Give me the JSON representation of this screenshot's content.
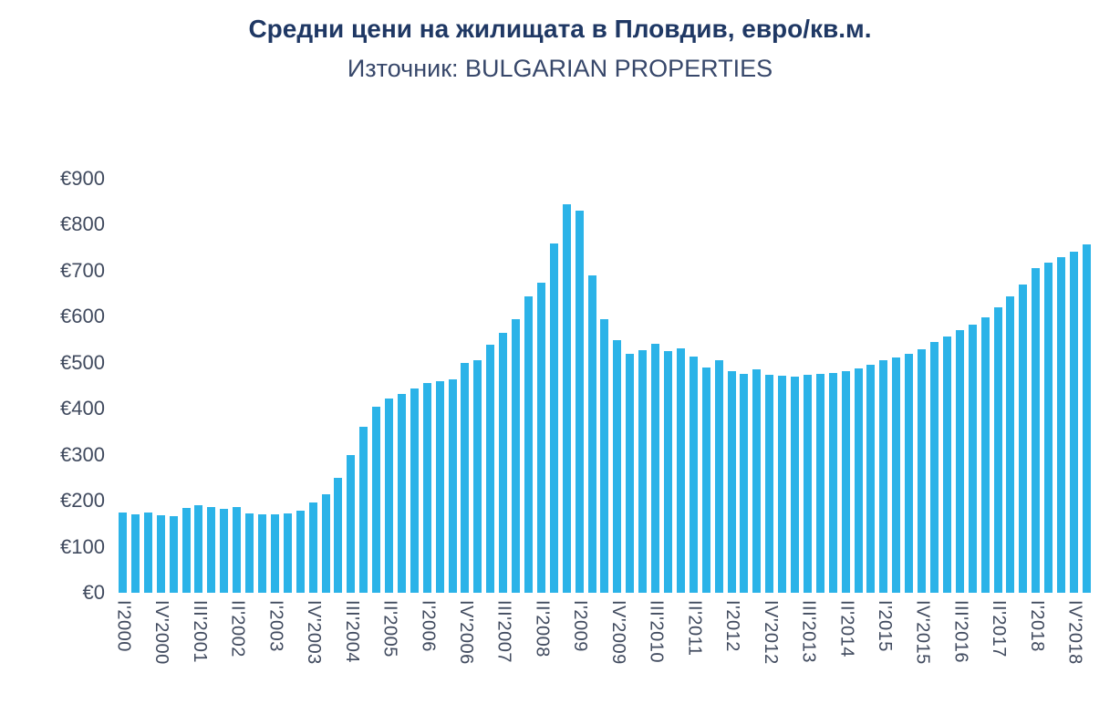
{
  "header": {
    "title": "Средни цени на жилищата в Пловдив, евро/кв.м.",
    "subtitle": "Източник: BULGARIAN PROPERTIES"
  },
  "colors": {
    "bar": "#2bb3e8",
    "title_text": "#1f3864",
    "subtitle_text": "#37476a",
    "axis_text": "#404a5e",
    "background": "#ffffff"
  },
  "chart_data": {
    "type": "bar",
    "title": "Средни цени на жилищата в Пловдив, евро/кв.м.",
    "subtitle": "Източник: BULGARIAN PROPERTIES",
    "unit": "евро/кв.м.",
    "xlabel": "",
    "ylabel": "",
    "ylim": [
      0,
      900
    ],
    "ytick_step": 100,
    "ytick_values": [
      0,
      100,
      200,
      300,
      400,
      500,
      600,
      700,
      800,
      900
    ],
    "ytick_labels": [
      "€0",
      "€100",
      "€200",
      "€300",
      "€400",
      "€500",
      "€600",
      "€700",
      "€800",
      "€900"
    ],
    "grid": false,
    "legend": "none",
    "x_label_every": 3,
    "visible_x_labels": [
      "I'2000",
      "IV'2000",
      "III'2001",
      "II'2002",
      "I'2003",
      "IV'2003",
      "III'2004",
      "II'2005",
      "I'2006",
      "IV'2006",
      "III'2007",
      "II'2008",
      "I'2009",
      "IV'2009",
      "III'2010",
      "II'2011",
      "I'2012",
      "IV'2012",
      "III'2013",
      "II'2014",
      "I'2015",
      "IV'2015",
      "III'2016",
      "II'2017",
      "I'2018",
      "IV'2018"
    ],
    "categories": [
      "I'2000",
      "II'2000",
      "III'2000",
      "IV'2000",
      "I'2001",
      "II'2001",
      "III'2001",
      "IV'2001",
      "I'2002",
      "II'2002",
      "III'2002",
      "IV'2002",
      "I'2003",
      "II'2003",
      "III'2003",
      "IV'2003",
      "I'2004",
      "II'2004",
      "III'2004",
      "IV'2004",
      "I'2005",
      "II'2005",
      "III'2005",
      "IV'2005",
      "I'2006",
      "II'2006",
      "III'2006",
      "IV'2006",
      "I'2007",
      "II'2007",
      "III'2007",
      "IV'2007",
      "I'2008",
      "II'2008",
      "III'2008",
      "IV'2008",
      "I'2009",
      "II'2009",
      "III'2009",
      "IV'2009",
      "I'2010",
      "II'2010",
      "III'2010",
      "IV'2010",
      "I'2011",
      "II'2011",
      "III'2011",
      "IV'2011",
      "I'2012",
      "II'2012",
      "III'2012",
      "IV'2012",
      "I'2013",
      "II'2013",
      "III'2013",
      "IV'2013",
      "I'2014",
      "II'2014",
      "III'2014",
      "IV'2014",
      "I'2015",
      "II'2015",
      "III'2015",
      "IV'2015",
      "I'2016",
      "II'2016",
      "III'2016",
      "IV'2016",
      "I'2017",
      "II'2017",
      "III'2017",
      "IV'2017",
      "I'2018",
      "II'2018",
      "III'2018",
      "IV'2018",
      "I'2019"
    ],
    "values": [
      175,
      171,
      174,
      168,
      166,
      184,
      190,
      187,
      183,
      186,
      172,
      170,
      170,
      173,
      178,
      196,
      215,
      250,
      300,
      360,
      405,
      422,
      432,
      445,
      456,
      460,
      464,
      500,
      505,
      540,
      565,
      595,
      645,
      675,
      760,
      845,
      830,
      690,
      595,
      550,
      520,
      528,
      541,
      525,
      531,
      514,
      490,
      505,
      481,
      475,
      485,
      474,
      471,
      470,
      473,
      475,
      478,
      482,
      488,
      495,
      505,
      512,
      520,
      530,
      545,
      557,
      570,
      582,
      598,
      620,
      645,
      670,
      705,
      718,
      730,
      742,
      758
    ]
  }
}
